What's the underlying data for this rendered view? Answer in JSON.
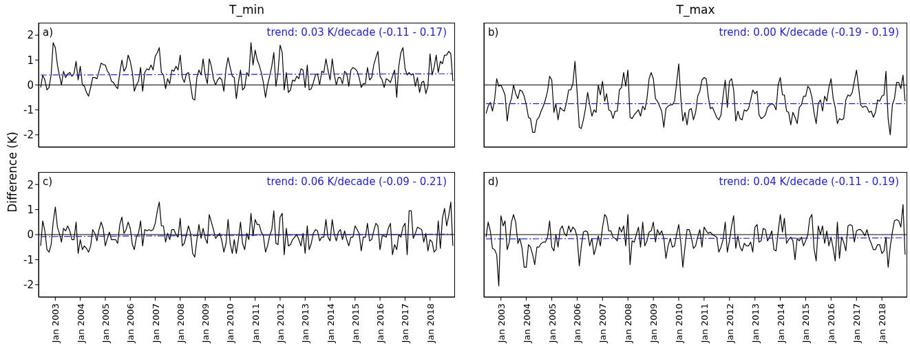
{
  "chart_data": [
    {
      "type": "line",
      "title": "T_min",
      "ylabel": "Difference (K)",
      "annotations": [
        "a)",
        "trend: 0.03 K/decade (-0.11 - 0.17)"
      ],
      "xlim": [
        "2002-05",
        "2019-01"
      ],
      "ylim": [
        -2.5,
        2.5
      ],
      "yticks": [
        -2,
        -1,
        0,
        1,
        2
      ],
      "xticks": [
        {
          "value": "2003-01",
          "label": null
        },
        {
          "value": "2004-01",
          "label": null
        },
        {
          "value": "2005-01",
          "label": null
        },
        {
          "value": "2006-01",
          "label": null
        },
        {
          "value": "2007-01",
          "label": null
        },
        {
          "value": "2008-01",
          "label": null
        },
        {
          "value": "2009-01",
          "label": null
        },
        {
          "value": "2010-01",
          "label": null
        },
        {
          "value": "2011-01",
          "label": null
        },
        {
          "value": "2012-01",
          "label": null
        },
        {
          "value": "2013-01",
          "label": null
        },
        {
          "value": "2014-01",
          "label": null
        },
        {
          "value": "2015-01",
          "label": null
        },
        {
          "value": "2016-01",
          "label": null
        },
        {
          "value": "2017-01",
          "label": null
        },
        {
          "value": "2018-01",
          "label": null
        }
      ],
      "tick_labels": "y",
      "ref_lines": [
        {
          "axis": "y",
          "value": 0,
          "color": "#000000"
        }
      ],
      "x": [
        "2002-06",
        "2002-07",
        "2002-08",
        "2002-09",
        "2002-10",
        "2002-11",
        "2002-12",
        "2003-01",
        "2003-02",
        "2003-03",
        "2003-04",
        "2003-05",
        "2003-06",
        "2003-07",
        "2003-08",
        "2003-09",
        "2003-10",
        "2003-11",
        "2003-12",
        "2004-01",
        "2004-02",
        "2004-03",
        "2004-04",
        "2004-05",
        "2004-06",
        "2004-07",
        "2004-08",
        "2004-09",
        "2004-10",
        "2004-11",
        "2004-12",
        "2005-01",
        "2005-02",
        "2005-03",
        "2005-04",
        "2005-05",
        "2005-06",
        "2005-07",
        "2005-08",
        "2005-09",
        "2005-10",
        "2005-11",
        "2005-12",
        "2006-01",
        "2006-02",
        "2006-03",
        "2006-04",
        "2006-05",
        "2006-06",
        "2006-07",
        "2006-08",
        "2006-09",
        "2006-10",
        "2006-11",
        "2006-12",
        "2007-01",
        "2007-02",
        "2007-03",
        "2007-04",
        "2007-05",
        "2007-06",
        "2007-07",
        "2007-08",
        "2007-09",
        "2007-10",
        "2007-11",
        "2007-12",
        "2008-01",
        "2008-02",
        "2008-03",
        "2008-04",
        "2008-05",
        "2008-06",
        "2008-07",
        "2008-08",
        "2008-09",
        "2008-10",
        "2008-11",
        "2008-12",
        "2009-01",
        "2009-02",
        "2009-03",
        "2009-04",
        "2009-05",
        "2009-06",
        "2009-07",
        "2009-08",
        "2009-09",
        "2009-10",
        "2009-11",
        "2009-12",
        "2010-01",
        "2010-02",
        "2010-03",
        "2010-04",
        "2010-05",
        "2010-06",
        "2010-07",
        "2010-08",
        "2010-09",
        "2010-10",
        "2010-11",
        "2010-12",
        "2011-01",
        "2011-02",
        "2011-03",
        "2011-04",
        "2011-05",
        "2011-06",
        "2011-07",
        "2011-08",
        "2011-09",
        "2011-10",
        "2011-11",
        "2011-12",
        "2012-01",
        "2012-02",
        "2012-03",
        "2012-04",
        "2012-05",
        "2012-06",
        "2012-07",
        "2012-08",
        "2012-09",
        "2012-10",
        "2012-11",
        "2012-12",
        "2013-01",
        "2013-02",
        "2013-03",
        "2013-04",
        "2013-05",
        "2013-06",
        "2013-07",
        "2013-08",
        "2013-09",
        "2013-10",
        "2013-11",
        "2013-12",
        "2014-01",
        "2014-02",
        "2014-03",
        "2014-04",
        "2014-05",
        "2014-06",
        "2014-07",
        "2014-08",
        "2014-09",
        "2014-10",
        "2014-11",
        "2014-12",
        "2015-01",
        "2015-02",
        "2015-03",
        "2015-04",
        "2015-05",
        "2015-06",
        "2015-07",
        "2015-08",
        "2015-09",
        "2015-10",
        "2015-11",
        "2015-12",
        "2016-01",
        "2016-02",
        "2016-03",
        "2016-04",
        "2016-05",
        "2016-06",
        "2016-07",
        "2016-08",
        "2016-09",
        "2016-10",
        "2016-11",
        "2016-12",
        "2017-01",
        "2017-02",
        "2017-03",
        "2017-04",
        "2017-05",
        "2017-06",
        "2017-07",
        "2017-08",
        "2017-09",
        "2017-10",
        "2017-11",
        "2017-12",
        "2018-01",
        "2018-02",
        "2018-03",
        "2018-04",
        "2018-05",
        "2018-06",
        "2018-07",
        "2018-08",
        "2018-09",
        "2018-10",
        "2018-11",
        "2018-12"
      ],
      "series": [
        {
          "type": "line",
          "color": "#000000",
          "values": [
            -0.1,
            0.4,
            0.2,
            -0.2,
            -0.1,
            0.4,
            1.7,
            1.5,
            0.8,
            0.4,
            0.0,
            0.55,
            0.3,
            0.45,
            0.5,
            0.35,
            0.45,
            0.95,
            0.2,
            0.75,
            0.0,
            -0.05,
            -0.3,
            -0.45,
            -0.1,
            0.3,
            0.3,
            0.25,
            0.55,
            0.88,
            0.82,
            0.8,
            0.55,
            0.45,
            0.15,
            0.1,
            -0.05,
            -0.15,
            0.5,
            1.0,
            0.55,
            0.7,
            1.2,
            0.95,
            0.5,
            -0.25,
            0.0,
            0.15,
            0.7,
            -0.25,
            0.5,
            0.65,
            0.6,
            0.8,
            0.6,
            1.15,
            1.3,
            1.5,
            0.5,
            0.4,
            -0.15,
            0.25,
            0.05,
            0.6,
            0.55,
            0.75,
            0.6,
            1.2,
            0.3,
            0.1,
            0.45,
            0.5,
            0.0,
            -0.55,
            -0.6,
            0.3,
            0.6,
            0.4,
            1.05,
            0.4,
            0.05,
            1.05,
            0.75,
            0.25,
            0.0,
            0.2,
            0.3,
            0.2,
            -0.25,
            0.65,
            1.1,
            0.7,
            0.35,
            0.3,
            -0.55,
            0.1,
            0.6,
            -0.2,
            -0.1,
            0.5,
            0.35,
            1.7,
            0.8,
            1.4,
            1.0,
            0.8,
            0.5,
            0.1,
            -0.5,
            0.0,
            0.35,
            0.75,
            1.3,
            -0.05,
            0.5,
            1.6,
            1.3,
            -0.2,
            0.5,
            -0.3,
            -0.2,
            0.2,
            0.15,
            0.35,
            0.25,
            0.65,
            0.6,
            -0.1,
            0.8,
            -0.2,
            -0.15,
            0.1,
            0.4,
            0.45,
            0.0,
            0.55,
            0.5,
            1.05,
            0.6,
            0.2,
            1.05,
            0.45,
            0.0,
            0.3,
            0.3,
            0.05,
            0.55,
            0.45,
            -0.05,
            0.6,
            0.7,
            0.65,
            0.55,
            0.3,
            -0.1,
            0.05,
            0.05,
            0.7,
            0.2,
            0.3,
            0.8,
            1.1,
            1.35,
            0.35,
            0.2,
            -0.1,
            0.25,
            0.2,
            0.1,
            0.35,
            0.6,
            -0.5,
            0.75,
            1.3,
            1.5,
            0.65,
            0.4,
            0.5,
            0.4,
            0.45,
            -0.05,
            0.3,
            -0.3,
            0.1,
            0.15,
            -0.35,
            -0.05,
            1.25,
            0.4,
            0.7,
            1.2,
            0.5,
            0.95,
            0.85,
            1.2,
            1.2,
            1.35,
            1.25,
            0.15
          ]
        },
        {
          "type": "line",
          "color": "#2222cc",
          "line_style": "dashed",
          "x": [
            "2002-06",
            "2018-12"
          ],
          "values": [
            0.4,
            0.45
          ]
        }
      ]
    },
    {
      "type": "line",
      "title": "T_max",
      "annotations": [
        "b)",
        "trend: 0.00 K/decade (-0.19 - 0.19)"
      ],
      "xlim": [
        "2002-05",
        "2019-01"
      ],
      "ylim": [
        -2.5,
        2.5
      ],
      "yticks": [
        -2,
        -1,
        0,
        1,
        2
      ],
      "xticks": [
        {
          "value": "2003-01",
          "label": null
        },
        {
          "value": "2004-01",
          "label": null
        },
        {
          "value": "2005-01",
          "label": null
        },
        {
          "value": "2006-01",
          "label": null
        },
        {
          "value": "2007-01",
          "label": null
        },
        {
          "value": "2008-01",
          "label": null
        },
        {
          "value": "2009-01",
          "label": null
        },
        {
          "value": "2010-01",
          "label": null
        },
        {
          "value": "2011-01",
          "label": null
        },
        {
          "value": "2012-01",
          "label": null
        },
        {
          "value": "2013-01",
          "label": null
        },
        {
          "value": "2014-01",
          "label": null
        },
        {
          "value": "2015-01",
          "label": null
        },
        {
          "value": "2016-01",
          "label": null
        },
        {
          "value": "2017-01",
          "label": null
        },
        {
          "value": "2018-01",
          "label": null
        }
      ],
      "tick_labels": false,
      "ref_lines": [
        {
          "axis": "y",
          "value": 0,
          "color": "#000000"
        }
      ],
      "x": [
        "2002-06",
        "2002-07",
        "2002-08",
        "2002-09",
        "2002-10",
        "2002-11",
        "2002-12",
        "2003-01",
        "2003-02",
        "2003-03",
        "2003-04",
        "2003-05",
        "2003-06",
        "2003-07",
        "2003-08",
        "2003-09",
        "2003-10",
        "2003-11",
        "2003-12",
        "2004-01",
        "2004-02",
        "2004-03",
        "2004-04",
        "2004-05",
        "2004-06",
        "2004-07",
        "2004-08",
        "2004-09",
        "2004-10",
        "2004-11",
        "2004-12",
        "2005-01",
        "2005-02",
        "2005-03",
        "2005-04",
        "2005-05",
        "2005-06",
        "2005-07",
        "2005-08",
        "2005-09",
        "2005-10",
        "2005-11",
        "2005-12",
        "2006-01",
        "2006-02",
        "2006-03",
        "2006-04",
        "2006-05",
        "2006-06",
        "2006-07",
        "2006-08",
        "2006-09",
        "2006-10",
        "2006-11",
        "2006-12",
        "2007-01",
        "2007-02",
        "2007-03",
        "2007-04",
        "2007-05",
        "2007-06",
        "2007-07",
        "2007-08",
        "2007-09",
        "2007-10",
        "2007-11",
        "2007-12",
        "2008-01",
        "2008-02",
        "2008-03",
        "2008-04",
        "2008-05",
        "2008-06",
        "2008-07",
        "2008-08",
        "2008-09",
        "2008-10",
        "2008-11",
        "2008-12",
        "2009-01",
        "2009-02",
        "2009-03",
        "2009-04",
        "2009-05",
        "2009-06",
        "2009-07",
        "2009-08",
        "2009-09",
        "2009-10",
        "2009-11",
        "2009-12",
        "2010-01",
        "2010-02",
        "2010-03",
        "2010-04",
        "2010-05",
        "2010-06",
        "2010-07",
        "2010-08",
        "2010-09",
        "2010-10",
        "2010-11",
        "2010-12",
        "2011-01",
        "2011-02",
        "2011-03",
        "2011-04",
        "2011-05",
        "2011-06",
        "2011-07",
        "2011-08",
        "2011-09",
        "2011-10",
        "2011-11",
        "2011-12",
        "2012-01",
        "2012-02",
        "2012-03",
        "2012-04",
        "2012-05",
        "2012-06",
        "2012-07",
        "2012-08",
        "2012-09",
        "2012-10",
        "2012-11",
        "2012-12",
        "2013-01",
        "2013-02",
        "2013-03",
        "2013-04",
        "2013-05",
        "2013-06",
        "2013-07",
        "2013-08",
        "2013-09",
        "2013-10",
        "2013-11",
        "2013-12",
        "2014-01",
        "2014-02",
        "2014-03",
        "2014-04",
        "2014-05",
        "2014-06",
        "2014-07",
        "2014-08",
        "2014-09",
        "2014-10",
        "2014-11",
        "2014-12",
        "2015-01",
        "2015-02",
        "2015-03",
        "2015-04",
        "2015-05",
        "2015-06",
        "2015-07",
        "2015-08",
        "2015-09",
        "2015-10",
        "2015-11",
        "2015-12",
        "2016-01",
        "2016-02",
        "2016-03",
        "2016-04",
        "2016-05",
        "2016-06",
        "2016-07",
        "2016-08",
        "2016-09",
        "2016-10",
        "2016-11",
        "2016-12",
        "2017-01",
        "2017-02",
        "2017-03",
        "2017-04",
        "2017-05",
        "2017-06",
        "2017-07",
        "2017-08",
        "2017-09",
        "2017-10",
        "2017-11",
        "2017-12",
        "2018-01",
        "2018-02",
        "2018-03",
        "2018-04",
        "2018-05",
        "2018-06",
        "2018-07",
        "2018-08",
        "2018-09",
        "2018-10",
        "2018-11",
        "2018-12"
      ],
      "series": [
        {
          "type": "line",
          "color": "#000000",
          "values": [
            -1.15,
            -0.85,
            -0.7,
            -1.05,
            -0.6,
            0.25,
            -0.05,
            0.0,
            -0.2,
            -0.4,
            -1.45,
            -0.8,
            -0.55,
            0.0,
            -0.35,
            -0.55,
            -0.2,
            -0.25,
            -0.45,
            -0.8,
            -1.3,
            -1.35,
            -1.9,
            -1.9,
            -1.4,
            -1.3,
            -1.05,
            -0.85,
            -0.6,
            -0.25,
            0.35,
            0.2,
            -1.1,
            -0.75,
            -1.4,
            -0.9,
            -1.0,
            -1.05,
            -0.7,
            -0.2,
            -0.2,
            0.05,
            0.95,
            -0.3,
            -1.7,
            -1.75,
            -1.4,
            -0.95,
            -0.3,
            -0.8,
            -1.25,
            -1.0,
            -1.1,
            0.0,
            -0.4,
            0.15,
            -0.65,
            -0.35,
            -1.0,
            -1.05,
            -1.35,
            -1.05,
            -1.05,
            -0.2,
            -0.1,
            0.5,
            -0.05,
            0.6,
            -1.3,
            -1.35,
            -1.2,
            -1.1,
            -1.0,
            -1.25,
            -0.85,
            -1.0,
            -0.55,
            0.25,
            0.5,
            0.25,
            -0.55,
            -0.65,
            -0.85,
            -1.05,
            -1.7,
            -0.95,
            -0.85,
            -0.8,
            -0.8,
            -0.65,
            0.05,
            0.85,
            -0.55,
            -1.45,
            -1.1,
            -1.6,
            -1.0,
            -0.95,
            -1.4,
            -1.1,
            -0.45,
            -0.25,
            0.2,
            0.3,
            0.25,
            -0.45,
            -0.95,
            -0.9,
            -1.1,
            -1.3,
            -1.4,
            -1.2,
            -0.45,
            0.2,
            -0.9,
            0.15,
            0.25,
            -0.2,
            -1.45,
            -1.05,
            -1.35,
            -1.4,
            -1.0,
            -1.05,
            -0.95,
            -0.6,
            -0.2,
            -0.35,
            -0.25,
            -1.2,
            -1.35,
            -1.3,
            -1.2,
            -0.9,
            -0.8,
            -0.75,
            -0.8,
            -1.0,
            0.0,
            0.3,
            -0.4,
            -0.4,
            -1.05,
            -1.1,
            -1.6,
            -1.1,
            -1.3,
            -1.55,
            -0.9,
            -0.8,
            -0.45,
            -0.45,
            -0.05,
            -0.15,
            -0.5,
            -1.1,
            -1.55,
            -0.75,
            -0.6,
            -1.05,
            -0.45,
            -0.65,
            -0.1,
            0.25,
            -0.55,
            -0.9,
            -1.55,
            -1.35,
            -1.4,
            -1.35,
            -0.6,
            -0.4,
            -0.45,
            -0.3,
            0.15,
            0.6,
            -0.1,
            -0.8,
            -0.9,
            -0.85,
            -0.9,
            -1.1,
            -1.05,
            -1.3,
            -1.1,
            -0.6,
            -0.65,
            -0.45,
            -0.4,
            0.55,
            -1.35,
            -2.0,
            -0.8,
            -0.55,
            0.1,
            0.1,
            -0.15,
            0.4,
            -0.65
          ]
        },
        {
          "type": "line",
          "color": "#2222cc",
          "line_style": "dashed",
          "x": [
            "2002-06",
            "2018-12"
          ],
          "values": [
            -0.75,
            -0.75
          ]
        }
      ]
    },
    {
      "type": "line",
      "annotations": [
        "c)",
        "trend: 0.06 K/decade (-0.09 - 0.21)"
      ],
      "xlim": [
        "2002-05",
        "2019-01"
      ],
      "ylim": [
        -2.5,
        2.5
      ],
      "yticks": [
        -2,
        -1,
        0,
        1,
        2
      ],
      "xticks": [
        {
          "value": "2003-01",
          "label": "Jan 2003"
        },
        {
          "value": "2004-01",
          "label": "Jan 2004"
        },
        {
          "value": "2005-01",
          "label": "Jan 2005"
        },
        {
          "value": "2006-01",
          "label": "Jan 2006"
        },
        {
          "value": "2007-01",
          "label": "Jan 2007"
        },
        {
          "value": "2008-01",
          "label": "Jan 2008"
        },
        {
          "value": "2009-01",
          "label": "Jan 2009"
        },
        {
          "value": "2010-01",
          "label": "Jan 2010"
        },
        {
          "value": "2011-01",
          "label": "Jan 2011"
        },
        {
          "value": "2012-01",
          "label": "Jan 2012"
        },
        {
          "value": "2013-01",
          "label": "Jan 2013"
        },
        {
          "value": "2014-01",
          "label": "Jan 2014"
        },
        {
          "value": "2015-01",
          "label": "Jan 2015"
        },
        {
          "value": "2016-01",
          "label": "Jan 2016"
        },
        {
          "value": "2017-01",
          "label": "Jan 2017"
        },
        {
          "value": "2018-01",
          "label": "Jan 2018"
        }
      ],
      "ref_lines": [
        {
          "axis": "y",
          "value": 0,
          "color": "#000000"
        }
      ],
      "x": [
        "2002-06",
        "2002-07",
        "2002-08",
        "2002-09",
        "2002-10",
        "2002-11",
        "2002-12",
        "2003-01",
        "2003-02",
        "2003-03",
        "2003-04",
        "2003-05",
        "2003-06",
        "2003-07",
        "2003-08",
        "2003-09",
        "2003-10",
        "2003-11",
        "2003-12",
        "2004-01",
        "2004-02",
        "2004-03",
        "2004-04",
        "2004-05",
        "2004-06",
        "2004-07",
        "2004-08",
        "2004-09",
        "2004-10",
        "2004-11",
        "2004-12",
        "2005-01",
        "2005-02",
        "2005-03",
        "2005-04",
        "2005-05",
        "2005-06",
        "2005-07",
        "2005-08",
        "2005-09",
        "2005-10",
        "2005-11",
        "2005-12",
        "2006-01",
        "2006-02",
        "2006-03",
        "2006-04",
        "2006-05",
        "2006-06",
        "2006-07",
        "2006-08",
        "2006-09",
        "2006-10",
        "2006-11",
        "2006-12",
        "2007-01",
        "2007-02",
        "2007-03",
        "2007-04",
        "2007-05",
        "2007-06",
        "2007-07",
        "2007-08",
        "2007-09",
        "2007-10",
        "2007-11",
        "2007-12",
        "2008-01",
        "2008-02",
        "2008-03",
        "2008-04",
        "2008-05",
        "2008-06",
        "2008-07",
        "2008-08",
        "2008-09",
        "2008-10",
        "2008-11",
        "2008-12",
        "2009-01",
        "2009-02",
        "2009-03",
        "2009-04",
        "2009-05",
        "2009-06",
        "2009-07",
        "2009-08",
        "2009-09",
        "2009-10",
        "2009-11",
        "2009-12",
        "2010-01",
        "2010-02",
        "2010-03",
        "2010-04",
        "2010-05",
        "2010-06",
        "2010-07",
        "2010-08",
        "2010-09",
        "2010-10",
        "2010-11",
        "2010-12",
        "2011-01",
        "2011-02",
        "2011-03",
        "2011-04",
        "2011-05",
        "2011-06",
        "2011-07",
        "2011-08",
        "2011-09",
        "2011-10",
        "2011-11",
        "2011-12",
        "2012-01",
        "2012-02",
        "2012-03",
        "2012-04",
        "2012-05",
        "2012-06",
        "2012-07",
        "2012-08",
        "2012-09",
        "2012-10",
        "2012-11",
        "2012-12",
        "2013-01",
        "2013-02",
        "2013-03",
        "2013-04",
        "2013-05",
        "2013-06",
        "2013-07",
        "2013-08",
        "2013-09",
        "2013-10",
        "2013-11",
        "2013-12",
        "2014-01",
        "2014-02",
        "2014-03",
        "2014-04",
        "2014-05",
        "2014-06",
        "2014-07",
        "2014-08",
        "2014-09",
        "2014-10",
        "2014-11",
        "2014-12",
        "2015-01",
        "2015-02",
        "2015-03",
        "2015-04",
        "2015-05",
        "2015-06",
        "2015-07",
        "2015-08",
        "2015-09",
        "2015-10",
        "2015-11",
        "2015-12",
        "2016-01",
        "2016-02",
        "2016-03",
        "2016-04",
        "2016-05",
        "2016-06",
        "2016-07",
        "2016-08",
        "2016-09",
        "2016-10",
        "2016-11",
        "2016-12",
        "2017-01",
        "2017-02",
        "2017-03",
        "2017-04",
        "2017-05",
        "2017-06",
        "2017-07",
        "2017-08",
        "2017-09",
        "2017-10",
        "2017-11",
        "2017-12",
        "2018-01",
        "2018-02",
        "2018-03",
        "2018-04",
        "2018-05",
        "2018-06",
        "2018-07",
        "2018-08",
        "2018-09",
        "2018-10",
        "2018-11",
        "2018-12"
      ],
      "series": [
        {
          "type": "line",
          "color": "#000000",
          "values": [
            -0.45,
            0.55,
            0.15,
            -0.6,
            -0.7,
            -0.4,
            0.5,
            1.1,
            0.3,
            0.05,
            -0.3,
            0.25,
            0.15,
            0.35,
            0.15,
            -0.2,
            -0.2,
            0.5,
            -0.75,
            -0.2,
            -0.6,
            -0.45,
            -0.55,
            -0.7,
            -0.45,
            0.2,
            0.05,
            -0.25,
            0.2,
            0.5,
            0.25,
            -0.45,
            -0.15,
            0.1,
            -0.2,
            -0.2,
            -0.2,
            -0.35,
            0.4,
            0.7,
            0.05,
            0.2,
            0.5,
            0.25,
            -0.4,
            -0.6,
            -0.1,
            0.05,
            0.55,
            -0.45,
            0.2,
            0.15,
            0.2,
            0.15,
            0.2,
            0.45,
            0.95,
            1.3,
            0.35,
            0.35,
            -0.3,
            0.05,
            -0.2,
            0.2,
            0.2,
            0.0,
            -0.1,
            0.65,
            -0.45,
            -0.35,
            0.0,
            0.35,
            0.05,
            -0.75,
            -0.9,
            -0.2,
            0.4,
            -0.15,
            0.25,
            -0.15,
            -0.35,
            0.8,
            0.5,
            0.2,
            -0.15,
            -0.05,
            0.05,
            -0.25,
            -0.7,
            -0.35,
            0.6,
            -0.35,
            -0.75,
            -0.2,
            -0.75,
            -0.2,
            0.5,
            -0.35,
            -0.6,
            0.05,
            -0.2,
            0.85,
            -0.05,
            0.6,
            0.4,
            0.4,
            0.1,
            -0.05,
            -0.7,
            -0.45,
            -0.05,
            0.2,
            0.95,
            -0.35,
            -0.4,
            0.7,
            0.85,
            -0.8,
            0.25,
            -0.45,
            -0.4,
            -0.2,
            -0.1,
            0.0,
            -0.2,
            -0.45,
            0.05,
            -0.75,
            0.35,
            -0.6,
            -0.35,
            0.05,
            0.2,
            0.15,
            -0.25,
            -0.1,
            -0.1,
            0.6,
            -0.1,
            -0.25,
            0.6,
            0.05,
            -0.25,
            0.1,
            0.2,
            -0.2,
            0.15,
            -0.2,
            -0.45,
            -0.1,
            -0.1,
            0.35,
            0.2,
            0.05,
            -0.65,
            -0.1,
            -0.1,
            0.45,
            -0.25,
            -0.2,
            0.15,
            0.45,
            0.35,
            -0.6,
            -0.05,
            -0.05,
            -0.1,
            0.25,
            0.45,
            -0.8,
            -0.4,
            -0.6,
            0.0,
            -0.1,
            0.3,
            0.45,
            -0.8,
            0.95,
            0.95,
            -0.15,
            0.05,
            0.3,
            0.25,
            0.2,
            -0.3,
            0.05,
            -0.65,
            -0.2,
            -0.3,
            -0.7,
            -0.6,
            0.55,
            -0.55,
            0.65,
            1.05,
            0.35,
            0.75,
            1.3,
            -0.45
          ]
        },
        {
          "type": "line",
          "color": "#2222cc",
          "line_style": "dashed",
          "x": [
            "2002-06",
            "2018-12"
          ],
          "values": [
            -0.08,
            0.02
          ]
        }
      ]
    },
    {
      "type": "line",
      "annotations": [
        "d)",
        "trend: 0.04 K/decade (-0.11 - 0.19)"
      ],
      "xlim": [
        "2002-05",
        "2019-01"
      ],
      "ylim": [
        -2.5,
        2.5
      ],
      "yticks": [
        -2,
        -1,
        0,
        1,
        2
      ],
      "xticks": [
        {
          "value": "2003-01",
          "label": "Jan 2003"
        },
        {
          "value": "2004-01",
          "label": "Jan 2004"
        },
        {
          "value": "2005-01",
          "label": "Jan 2005"
        },
        {
          "value": "2006-01",
          "label": "Jan 2006"
        },
        {
          "value": "2007-01",
          "label": "Jan 2007"
        },
        {
          "value": "2008-01",
          "label": "Jan 2008"
        },
        {
          "value": "2009-01",
          "label": "Jan 2009"
        },
        {
          "value": "2010-01",
          "label": "Jan 2010"
        },
        {
          "value": "2011-01",
          "label": "Jan 2011"
        },
        {
          "value": "2012-01",
          "label": "Jan 2012"
        },
        {
          "value": "2013-01",
          "label": "Jan 2013"
        },
        {
          "value": "2014-01",
          "label": "Jan 2014"
        },
        {
          "value": "2015-01",
          "label": "Jan 2015"
        },
        {
          "value": "2016-01",
          "label": "Jan 2016"
        },
        {
          "value": "2017-01",
          "label": "Jan 2017"
        },
        {
          "value": "2018-01",
          "label": "Jan 2018"
        }
      ],
      "tick_labels": "x",
      "ref_lines": [
        {
          "axis": "y",
          "value": 0,
          "color": "#000000"
        }
      ],
      "x": [
        "2002-06",
        "2002-07",
        "2002-08",
        "2002-09",
        "2002-10",
        "2002-11",
        "2002-12",
        "2003-01",
        "2003-02",
        "2003-03",
        "2003-04",
        "2003-05",
        "2003-06",
        "2003-07",
        "2003-08",
        "2003-09",
        "2003-10",
        "2003-11",
        "2003-12",
        "2004-01",
        "2004-02",
        "2004-03",
        "2004-04",
        "2004-05",
        "2004-06",
        "2004-07",
        "2004-08",
        "2004-09",
        "2004-10",
        "2004-11",
        "2004-12",
        "2005-01",
        "2005-02",
        "2005-03",
        "2005-04",
        "2005-05",
        "2005-06",
        "2005-07",
        "2005-08",
        "2005-09",
        "2005-10",
        "2005-11",
        "2005-12",
        "2006-01",
        "2006-02",
        "2006-03",
        "2006-04",
        "2006-05",
        "2006-06",
        "2006-07",
        "2006-08",
        "2006-09",
        "2006-10",
        "2006-11",
        "2006-12",
        "2007-01",
        "2007-02",
        "2007-03",
        "2007-04",
        "2007-05",
        "2007-06",
        "2007-07",
        "2007-08",
        "2007-09",
        "2007-10",
        "2007-11",
        "2007-12",
        "2008-01",
        "2008-02",
        "2008-03",
        "2008-04",
        "2008-05",
        "2008-06",
        "2008-07",
        "2008-08",
        "2008-09",
        "2008-10",
        "2008-11",
        "2008-12",
        "2009-01",
        "2009-02",
        "2009-03",
        "2009-04",
        "2009-05",
        "2009-06",
        "2009-07",
        "2009-08",
        "2009-09",
        "2009-10",
        "2009-11",
        "2009-12",
        "2010-01",
        "2010-02",
        "2010-03",
        "2010-04",
        "2010-05",
        "2010-06",
        "2010-07",
        "2010-08",
        "2010-09",
        "2010-10",
        "2010-11",
        "2010-12",
        "2011-01",
        "2011-02",
        "2011-03",
        "2011-04",
        "2011-05",
        "2011-06",
        "2011-07",
        "2011-08",
        "2011-09",
        "2011-10",
        "2011-11",
        "2011-12",
        "2012-01",
        "2012-02",
        "2012-03",
        "2012-04",
        "2012-05",
        "2012-06",
        "2012-07",
        "2012-08",
        "2012-09",
        "2012-10",
        "2012-11",
        "2012-12",
        "2013-01",
        "2013-02",
        "2013-03",
        "2013-04",
        "2013-05",
        "2013-06",
        "2013-07",
        "2013-08",
        "2013-09",
        "2013-10",
        "2013-11",
        "2013-12",
        "2014-01",
        "2014-02",
        "2014-03",
        "2014-04",
        "2014-05",
        "2014-06",
        "2014-07",
        "2014-08",
        "2014-09",
        "2014-10",
        "2014-11",
        "2014-12",
        "2015-01",
        "2015-02",
        "2015-03",
        "2015-04",
        "2015-05",
        "2015-06",
        "2015-07",
        "2015-08",
        "2015-09",
        "2015-10",
        "2015-11",
        "2015-12",
        "2016-01",
        "2016-02",
        "2016-03",
        "2016-04",
        "2016-05",
        "2016-06",
        "2016-07",
        "2016-08",
        "2016-09",
        "2016-10",
        "2016-11",
        "2016-12",
        "2017-01",
        "2017-02",
        "2017-03",
        "2017-04",
        "2017-05",
        "2017-06",
        "2017-07",
        "2017-08",
        "2017-09",
        "2017-10",
        "2017-11",
        "2017-12",
        "2018-01",
        "2018-02",
        "2018-03",
        "2018-04",
        "2018-05",
        "2018-06",
        "2018-07",
        "2018-08",
        "2018-09",
        "2018-10",
        "2018-11",
        "2018-12"
      ],
      "series": [
        {
          "type": "line",
          "color": "#000000",
          "values": [
            -0.1,
            0.5,
            0.15,
            -0.55,
            -0.6,
            -0.8,
            -2.05,
            0.75,
            0.35,
            0.55,
            -0.6,
            -0.3,
            0.5,
            0.8,
            0.5,
            -0.35,
            -0.15,
            -0.55,
            -1.3,
            -1.3,
            -0.4,
            -0.5,
            -0.8,
            -1.2,
            -0.5,
            -0.5,
            -0.35,
            -0.3,
            -0.3,
            -0.1,
            0.55,
            -0.5,
            -0.65,
            0.0,
            -0.5,
            0.2,
            0.35,
            0.05,
            -0.05,
            0.35,
            0.1,
            0.3,
            0.2,
            -0.1,
            -1.25,
            -0.5,
            0.1,
            0.15,
            0.1,
            -0.45,
            -0.15,
            -0.8,
            -0.5,
            -0.05,
            -0.45,
            0.3,
            0.8,
            0.7,
            0.15,
            0.15,
            -0.1,
            -0.15,
            -0.25,
            0.3,
            0.1,
            0.35,
            -0.45,
            0.8,
            -1.2,
            -0.25,
            -0.3,
            0.0,
            0.3,
            -0.5,
            0.5,
            -0.45,
            -0.25,
            0.1,
            0.15,
            0.5,
            -0.3,
            0.2,
            0.0,
            0.15,
            -0.15,
            -0.95,
            -0.45,
            -0.15,
            -0.5,
            -0.45,
            0.0,
            0.4,
            -0.35,
            -1.3,
            -0.5,
            0.2,
            0.2,
            -0.1,
            -0.55,
            -0.45,
            -0.1,
            0.2,
            -0.5,
            0.3,
            0.15,
            0.05,
            0.1,
            0.0,
            -0.05,
            -0.1,
            -0.7,
            -0.5,
            -0.2,
            0.5,
            -0.7,
            -0.25,
            0.35,
            0.75,
            -0.55,
            -0.05,
            -0.5,
            -0.65,
            -0.35,
            -0.45,
            -0.45,
            -0.3,
            -0.7,
            0.3,
            0.4,
            -0.3,
            -0.25,
            0.25,
            0.2,
            -0.25,
            -0.1,
            0.15,
            -0.6,
            -0.65,
            0.1,
            0.8,
            0.1,
            0.65,
            -0.35,
            -0.2,
            -0.1,
            -0.25,
            -1.0,
            -0.15,
            -0.25,
            -0.1,
            -0.45,
            -0.25,
            0.0,
            0.65,
            0.8,
            -0.55,
            -1.05,
            0.35,
            0.0,
            0.35,
            -0.35,
            0.15,
            -0.45,
            -0.1,
            -0.55,
            -1.05,
            0.5,
            -0.95,
            -0.1,
            -0.3,
            -0.65,
            0.35,
            0.4,
            0.35,
            -0.3,
            0.15,
            0.2,
            0.2,
            0.1,
            -0.05,
            0.2,
            -0.15,
            -0.35,
            -0.6,
            -0.6,
            -0.4,
            -0.4,
            -0.75,
            -0.65,
            -0.1,
            -1.3,
            -0.5,
            0.1,
            0.55,
            0.6,
            0.55,
            0.3,
            1.2,
            -0.8
          ]
        },
        {
          "type": "line",
          "color": "#2222cc",
          "line_style": "dashed",
          "x": [
            "2002-06",
            "2018-12"
          ],
          "values": [
            -0.17,
            -0.13
          ]
        }
      ]
    }
  ]
}
